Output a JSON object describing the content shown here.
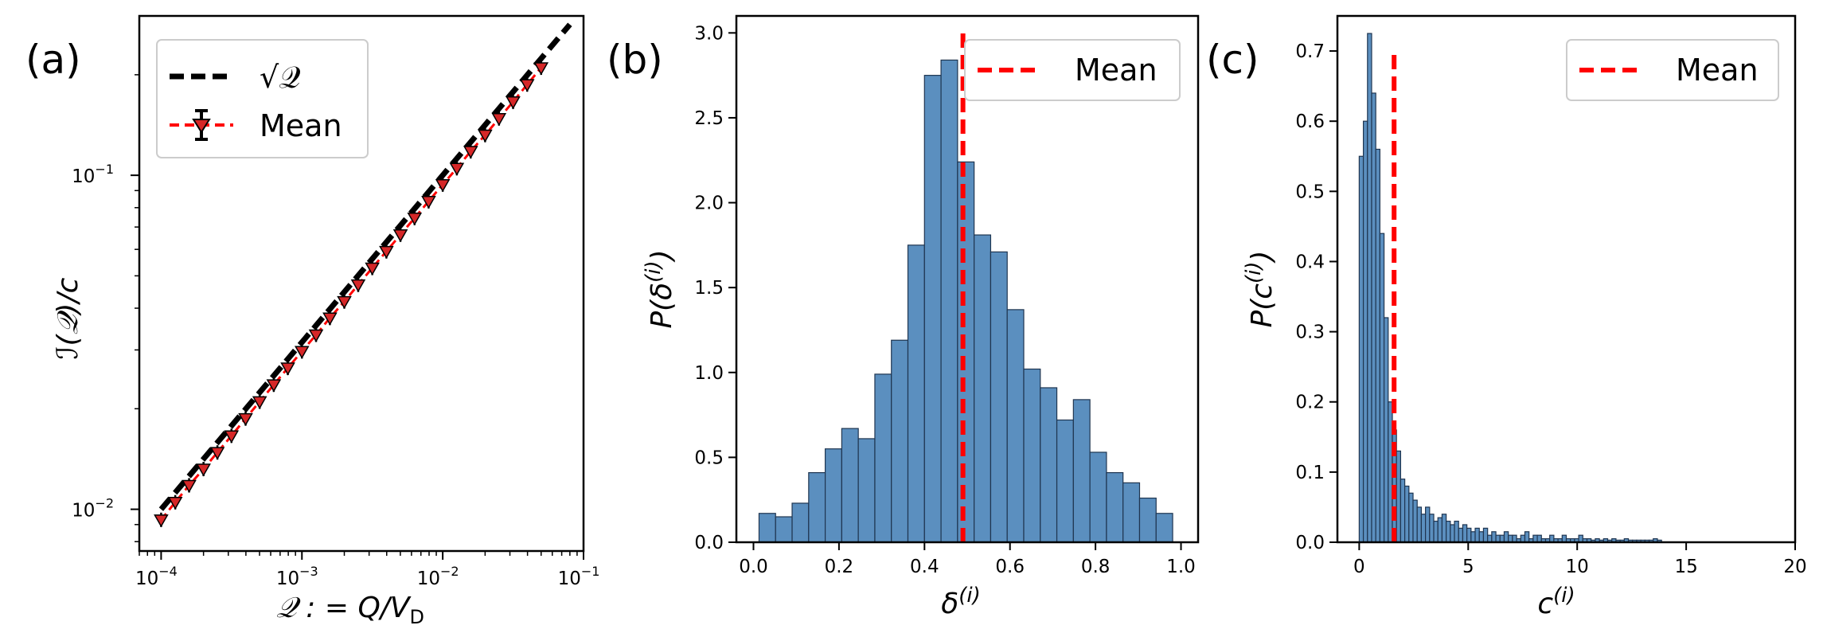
{
  "chart_data": [
    {
      "panel": "(a)",
      "type": "line",
      "xscale": "log",
      "yscale": "log",
      "xlabel": "𝒬 : = Q/V",
      "xlabel_sub": "D",
      "ylabel": "ℐ(𝒬)/c",
      "xlim": [
        7e-05,
        0.1
      ],
      "ylim": [
        0.0075,
        0.3
      ],
      "xticks": [
        {
          "value": 0.0001,
          "label": "10",
          "exp": "−4"
        },
        {
          "value": 0.001,
          "label": "10",
          "exp": "−3"
        },
        {
          "value": 0.01,
          "label": "10",
          "exp": "−2"
        },
        {
          "value": 0.1,
          "label": "10",
          "exp": "−1"
        }
      ],
      "yticks": [
        {
          "value": 0.01,
          "label": "10",
          "exp": "−2"
        },
        {
          "value": 0.1,
          "label": "10",
          "exp": "−1"
        }
      ],
      "legend": {
        "position": "top-left",
        "entries": [
          {
            "label": "√𝒬",
            "style": "black-dashed"
          },
          {
            "label": "Mean",
            "style": "red-dashed-triangle-errorbar"
          }
        ]
      },
      "series": [
        {
          "name": "√𝒬",
          "color": "#000000",
          "function": "sqrt",
          "x_range": [
            0.0001,
            0.08
          ]
        },
        {
          "name": "Mean",
          "color": "#ff0000",
          "x": [
            0.0001,
            0.000126,
            0.000158,
            0.0002,
            0.000251,
            0.000316,
            0.000398,
            0.000501,
            0.000631,
            0.000794,
            0.001,
            0.00126,
            0.00158,
            0.002,
            0.00251,
            0.00316,
            0.00398,
            0.00501,
            0.00631,
            0.00794,
            0.01,
            0.0126,
            0.0158,
            0.02,
            0.0251,
            0.0316,
            0.0398,
            0.05
          ],
          "y": [
            0.0093,
            0.0105,
            0.0118,
            0.0132,
            0.0148,
            0.0166,
            0.0187,
            0.021,
            0.0236,
            0.0265,
            0.0297,
            0.0333,
            0.0374,
            0.0419,
            0.047,
            0.0528,
            0.0592,
            0.0664,
            0.0745,
            0.0836,
            0.0938,
            0.105,
            0.118,
            0.132,
            0.148,
            0.166,
            0.187,
            0.21
          ]
        }
      ]
    },
    {
      "panel": "(b)",
      "type": "bar",
      "xlabel": "δ",
      "xlabel_sup": "(i)",
      "ylabel": "P(δ",
      "ylabel_sup": "(i)",
      "ylabel_close": ")",
      "xlim": [
        -0.04,
        1.04
      ],
      "ylim": [
        0,
        3.1
      ],
      "xticks": [
        "0.0",
        "0.2",
        "0.4",
        "0.6",
        "0.8",
        "1.0"
      ],
      "xtick_values": [
        0,
        0.2,
        0.4,
        0.6,
        0.8,
        1.0
      ],
      "yticks": [
        "0.0",
        "0.5",
        "1.0",
        "1.5",
        "2.0",
        "2.5",
        "3.0"
      ],
      "ytick_values": [
        0,
        0.5,
        1.0,
        1.5,
        2.0,
        2.5,
        3.0
      ],
      "bar_color": "#5b8fbf",
      "bin_start": 0.013,
      "bin_width": 0.0387,
      "values": [
        0.17,
        0.15,
        0.23,
        0.41,
        0.55,
        0.67,
        0.61,
        0.99,
        1.19,
        1.75,
        2.75,
        2.84,
        2.24,
        1.81,
        1.71,
        1.37,
        1.02,
        0.91,
        0.72,
        0.84,
        0.53,
        0.41,
        0.35,
        0.26,
        0.17
      ],
      "mean": 0.49,
      "mean_line_top": 3.0,
      "mean_color": "#ff0000",
      "legend": {
        "position": "top-right",
        "entries": [
          {
            "label": "Mean",
            "style": "red-dashed"
          }
        ]
      }
    },
    {
      "panel": "(c)",
      "type": "bar",
      "xlabel": "c",
      "xlabel_sup": "(i)",
      "ylabel": "P(c",
      "ylabel_sup": "(i)",
      "ylabel_close": ")",
      "xlim": [
        -1,
        20
      ],
      "ylim": [
        0,
        0.75
      ],
      "xticks": [
        "0",
        "5",
        "10",
        "15",
        "20"
      ],
      "xtick_values": [
        0,
        5,
        10,
        15,
        20
      ],
      "yticks": [
        "0.0",
        "0.1",
        "0.2",
        "0.3",
        "0.4",
        "0.5",
        "0.6",
        "0.7"
      ],
      "ytick_values": [
        0,
        0.1,
        0.2,
        0.3,
        0.4,
        0.5,
        0.6,
        0.7
      ],
      "bar_color": "#5b8fbf",
      "bin_start": 0.0,
      "bin_width": 0.19,
      "values": [
        0.55,
        0.6,
        0.725,
        0.64,
        0.56,
        0.44,
        0.32,
        0.2,
        0.16,
        0.13,
        0.09,
        0.08,
        0.07,
        0.06,
        0.05,
        0.04,
        0.05,
        0.04,
        0.03,
        0.035,
        0.04,
        0.03,
        0.025,
        0.03,
        0.02,
        0.025,
        0.02,
        0.015,
        0.02,
        0.015,
        0.02,
        0.01,
        0.015,
        0.01,
        0.01,
        0.015,
        0.01,
        0.01,
        0.005,
        0.01,
        0.015,
        0.005,
        0.01,
        0.01,
        0.005,
        0.005,
        0.01,
        0.005,
        0.005,
        0.01,
        0.005,
        0.005,
        0.005,
        0.01,
        0.005,
        0.005,
        0.003,
        0.005,
        0.003,
        0.005,
        0.003,
        0.005,
        0.003,
        0.003,
        0.005,
        0.003,
        0.003,
        0.003,
        0.003,
        0.003,
        0.003,
        0.005,
        0.003
      ],
      "mean": 1.6,
      "mean_line_top": 0.7,
      "mean_color": "#ff0000",
      "legend": {
        "position": "top-right",
        "entries": [
          {
            "label": "Mean",
            "style": "red-dashed"
          }
        ]
      }
    }
  ]
}
